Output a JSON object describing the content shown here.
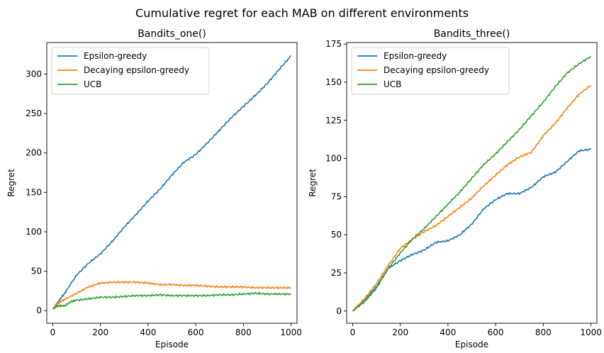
{
  "figure": {
    "suptitle": "Cumulative regret for each MAB on different environments"
  },
  "chart_data": [
    {
      "type": "line",
      "title": "Bandits_one()",
      "xlabel": "Episode",
      "ylabel": "Regret",
      "xlim": [
        -25,
        1025
      ],
      "ylim": [
        -16,
        340
      ],
      "xticks": [
        0,
        200,
        400,
        600,
        800,
        1000
      ],
      "yticks": [
        0,
        50,
        100,
        150,
        200,
        250,
        300
      ],
      "grid": false,
      "legend_position": "upper left",
      "series": [
        {
          "name": "Epsilon-greedy",
          "color": "#1f77b4",
          "points": [
            [
              0,
              2
            ],
            [
              20,
              10
            ],
            [
              50,
              22
            ],
            [
              100,
              45
            ],
            [
              150,
              60
            ],
            [
              200,
              72
            ],
            [
              250,
              88
            ],
            [
              300,
              106
            ],
            [
              350,
              122
            ],
            [
              400,
              139
            ],
            [
              450,
              154
            ],
            [
              500,
              172
            ],
            [
              550,
              188
            ],
            [
              600,
              198
            ],
            [
              650,
              213
            ],
            [
              700,
              229
            ],
            [
              750,
              245
            ],
            [
              800,
              259
            ],
            [
              850,
              273
            ],
            [
              900,
              288
            ],
            [
              950,
              306
            ],
            [
              1000,
              323
            ]
          ]
        },
        {
          "name": "Decaying epsilon-greedy",
          "color": "#ff7f0e",
          "points": [
            [
              0,
              2
            ],
            [
              25,
              10
            ],
            [
              50,
              14
            ],
            [
              100,
              22
            ],
            [
              150,
              30
            ],
            [
              200,
              35
            ],
            [
              250,
              36
            ],
            [
              300,
              36
            ],
            [
              350,
              36
            ],
            [
              400,
              35
            ],
            [
              450,
              33
            ],
            [
              500,
              33
            ],
            [
              550,
              32
            ],
            [
              600,
              32
            ],
            [
              650,
              31
            ],
            [
              700,
              30
            ],
            [
              750,
              30
            ],
            [
              800,
              30
            ],
            [
              850,
              29
            ],
            [
              900,
              29
            ],
            [
              950,
              29
            ],
            [
              1000,
              29
            ]
          ]
        },
        {
          "name": "UCB",
          "color": "#2ca02c",
          "points": [
            [
              0,
              2
            ],
            [
              20,
              6
            ],
            [
              50,
              6
            ],
            [
              80,
              12
            ],
            [
              100,
              13
            ],
            [
              150,
              15
            ],
            [
              200,
              17
            ],
            [
              250,
              17
            ],
            [
              300,
              18
            ],
            [
              350,
              19
            ],
            [
              400,
              19
            ],
            [
              450,
              20
            ],
            [
              500,
              19
            ],
            [
              550,
              19
            ],
            [
              600,
              19
            ],
            [
              650,
              19
            ],
            [
              700,
              20
            ],
            [
              750,
              20
            ],
            [
              800,
              21
            ],
            [
              850,
              22
            ],
            [
              900,
              21
            ],
            [
              950,
              21
            ],
            [
              1000,
              21
            ]
          ]
        }
      ]
    },
    {
      "type": "line",
      "title": "Bandits_three()",
      "xlabel": "Episode",
      "ylabel": "Regret",
      "xlim": [
        -25,
        1025
      ],
      "ylim": [
        -8,
        176
      ],
      "xticks": [
        0,
        200,
        400,
        600,
        800,
        1000
      ],
      "yticks": [
        0,
        25,
        50,
        75,
        100,
        125,
        150,
        175
      ],
      "grid": false,
      "legend_position": "upper left",
      "series": [
        {
          "name": "Epsilon-greedy",
          "color": "#1f77b4",
          "points": [
            [
              0,
              0
            ],
            [
              50,
              7
            ],
            [
              100,
              16
            ],
            [
              150,
              28
            ],
            [
              200,
              33
            ],
            [
              250,
              37
            ],
            [
              300,
              40
            ],
            [
              350,
              45
            ],
            [
              400,
              46
            ],
            [
              450,
              50
            ],
            [
              500,
              57
            ],
            [
              550,
              67
            ],
            [
              600,
              73
            ],
            [
              650,
              77
            ],
            [
              700,
              77
            ],
            [
              750,
              81
            ],
            [
              800,
              88
            ],
            [
              850,
              91
            ],
            [
              900,
              98
            ],
            [
              950,
              105
            ],
            [
              1000,
              106
            ]
          ]
        },
        {
          "name": "Decaying epsilon-greedy",
          "color": "#ff7f0e",
          "points": [
            [
              0,
              0
            ],
            [
              50,
              8
            ],
            [
              100,
              18
            ],
            [
              150,
              30
            ],
            [
              200,
              41
            ],
            [
              250,
              47
            ],
            [
              300,
              52
            ],
            [
              350,
              56
            ],
            [
              400,
              62
            ],
            [
              450,
              68
            ],
            [
              500,
              74
            ],
            [
              550,
              82
            ],
            [
              600,
              89
            ],
            [
              650,
              96
            ],
            [
              700,
              101
            ],
            [
              750,
              104
            ],
            [
              800,
              115
            ],
            [
              850,
              123
            ],
            [
              900,
              133
            ],
            [
              950,
              142
            ],
            [
              1000,
              148
            ]
          ]
        },
        {
          "name": "UCB",
          "color": "#2ca02c",
          "points": [
            [
              0,
              0
            ],
            [
              50,
              6
            ],
            [
              100,
              15
            ],
            [
              150,
              28
            ],
            [
              200,
              38
            ],
            [
              250,
              47
            ],
            [
              300,
              54
            ],
            [
              350,
              62
            ],
            [
              400,
              70
            ],
            [
              450,
              78
            ],
            [
              500,
              87
            ],
            [
              550,
              96
            ],
            [
              600,
              103
            ],
            [
              650,
              111
            ],
            [
              700,
              119
            ],
            [
              750,
              128
            ],
            [
              800,
              137
            ],
            [
              850,
              147
            ],
            [
              900,
              156
            ],
            [
              950,
              162
            ],
            [
              1000,
              167
            ]
          ]
        }
      ]
    }
  ]
}
